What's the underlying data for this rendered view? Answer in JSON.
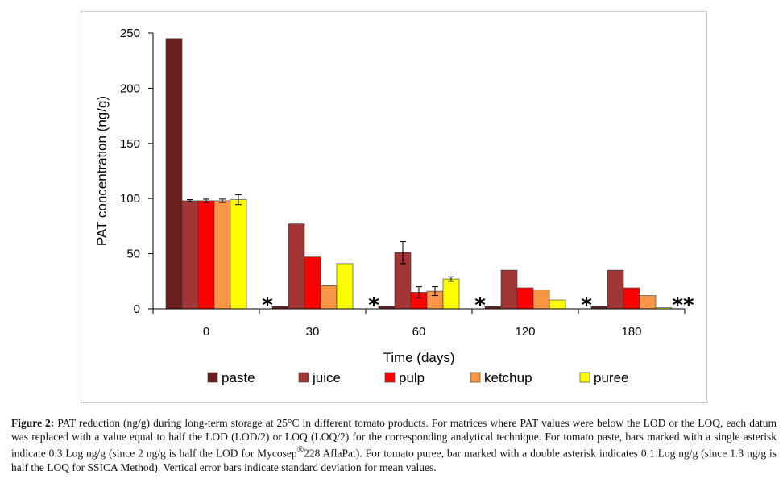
{
  "chart_data": {
    "type": "bar",
    "categories": [
      "0",
      "30",
      "60",
      "120",
      "180"
    ],
    "series": [
      {
        "name": "paste",
        "color": "#6B1F1F",
        "values": [
          245,
          2,
          2,
          2,
          2
        ],
        "errors": [
          0,
          0,
          0,
          0,
          0
        ]
      },
      {
        "name": "juice",
        "color": "#A23535",
        "values": [
          98,
          77,
          51,
          35,
          35
        ],
        "errors": [
          1,
          0,
          10,
          0,
          0
        ]
      },
      {
        "name": "pulp",
        "color": "#FF0000",
        "values": [
          98,
          47,
          15,
          19,
          19
        ],
        "errors": [
          1.5,
          0,
          5,
          0,
          0
        ]
      },
      {
        "name": "ketchup",
        "color": "#F79646",
        "values": [
          98,
          21,
          16,
          17,
          12
        ],
        "errors": [
          1.5,
          0,
          4,
          0,
          0
        ]
      },
      {
        "name": "puree",
        "color": "#FFFF00",
        "values": [
          99,
          41,
          27,
          8,
          1
        ],
        "errors": [
          4.5,
          0,
          2,
          0,
          0
        ]
      }
    ],
    "xlabel": "Time (days)",
    "ylabel": "PAT concentration (ng/g)",
    "ylim": [
      0,
      250
    ],
    "yticks": [
      0,
      50,
      100,
      150,
      200,
      250
    ],
    "legend_position": "bottom",
    "annotations": [
      {
        "text": "*",
        "category": "30",
        "series": "paste"
      },
      {
        "text": "*",
        "category": "60",
        "series": "paste"
      },
      {
        "text": "*",
        "category": "120",
        "series": "paste"
      },
      {
        "text": "*",
        "category": "180",
        "series": "paste"
      },
      {
        "text": "**",
        "category": "180",
        "series": "puree"
      }
    ]
  },
  "caption": {
    "label": "Figure 2:",
    "text_before_superscript": " PAT reduction (ng/g) during long-term storage at 25°C in different tomato products. For matrices where PAT values were below the LOD or the LOQ, each datum was replaced with a value equal to half the LOD (LOD/2) or LOQ (LOQ/2) for the corresponding analytical technique. For tomato paste, bars marked with a single asterisk indicate 0.3 Log ng/g (since 2 ng/g is half the LOD for Mycosep",
    "superscript": "®",
    "text_after_superscript": "228 AflaPat). For tomato puree, bar marked with a double asterisk indicates 0.1 Log ng/g (since 1.3 ng/g is half the LOQ for SSICA Method). Vertical error bars indicate standard deviation for mean values."
  }
}
